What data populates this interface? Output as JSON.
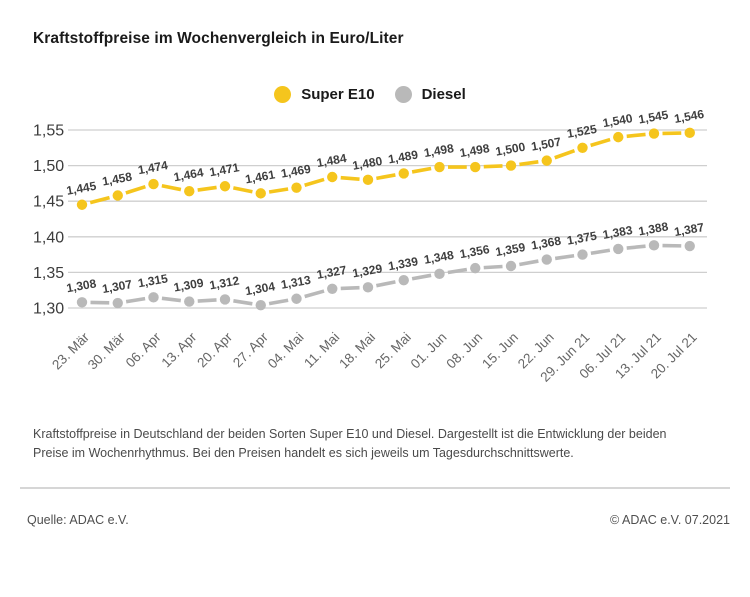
{
  "page": {
    "title": "Kraftstoffpreise im Wochenvergleich in Euro/Liter",
    "caption": "Kraftstoffpreise in Deutschland der beiden Sorten Super E10 und Diesel. Dargestellt ist die Entwicklung der beiden Preise im Wochenrhythmus. Bei den Preisen handelt es sich jeweils um Tagesdurchschnittswerte.",
    "source": "Quelle: ADAC e.V.",
    "copyright": "© ADAC e.V. 07.2021"
  },
  "colors": {
    "super_e10": "#F5C51D",
    "diesel": "#B9B9B9",
    "grid": "#cfcfcf",
    "point_label": "#3f3f3f",
    "axis_label": "#3c3c3c",
    "tick_label": "#666666"
  },
  "chart_data": {
    "type": "line",
    "title": "Kraftstoffpreise im Wochenvergleich in Euro/Liter",
    "categories": [
      "23. Mär",
      "30. Mär",
      "06. Apr",
      "13. Apr",
      "20. Apr",
      "27. Apr",
      "04. Mai",
      "11. Mai",
      "18. Mai",
      "25. Mai",
      "01. Jun",
      "08. Jun",
      "15. Jun",
      "22. Jun",
      "29. Jun 21",
      "06. Jul 21",
      "13. Jul 21",
      "20. Jul 21"
    ],
    "series": [
      {
        "name": "Super E10",
        "color": "#F5C51D",
        "values": [
          1.445,
          1.458,
          1.474,
          1.464,
          1.471,
          1.461,
          1.469,
          1.484,
          1.48,
          1.489,
          1.498,
          1.498,
          1.5,
          1.507,
          1.525,
          1.54,
          1.545,
          1.546
        ]
      },
      {
        "name": "Diesel",
        "color": "#B9B9B9",
        "values": [
          1.308,
          1.307,
          1.315,
          1.309,
          1.312,
          1.304,
          1.313,
          1.327,
          1.329,
          1.339,
          1.348,
          1.356,
          1.359,
          1.368,
          1.375,
          1.383,
          1.388,
          1.387
        ]
      }
    ],
    "ylim": [
      1.3,
      1.55
    ],
    "yticks": [
      "1,30",
      "1,35",
      "1,40",
      "1,45",
      "1,50",
      "1,55"
    ],
    "ylabel": "Euro/Liter",
    "grid": true,
    "legend_position": "top-center",
    "decimal_separator": ",",
    "point_labels_shown": true
  }
}
